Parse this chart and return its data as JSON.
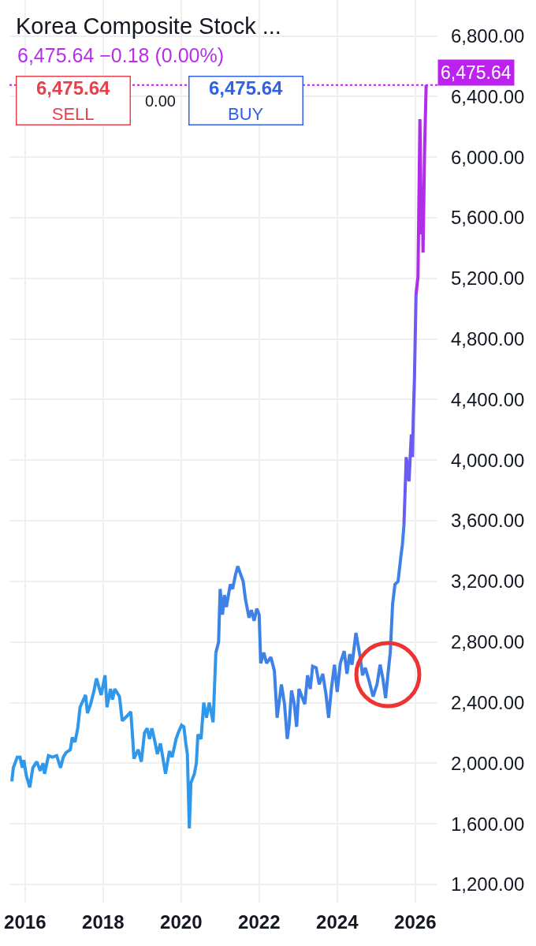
{
  "chart_data": {
    "type": "line",
    "title": "Korea Composite Stock ...",
    "subtitle": "6,475.64 −0.18 (0.00%)",
    "annotations": [
      "6,475.64\nSELL",
      "0.00",
      "6,475.64\nBUY"
    ],
    "xlim": [
      2015.6,
      2026.57
    ],
    "xticks": [
      2016,
      2018,
      2020,
      2022,
      2024,
      2026
    ],
    "ylim": [
      1080,
      7037
    ],
    "yticks": [
      {
        "value": 1200,
        "label": "1,200.00"
      },
      {
        "value": 1600,
        "label": "1,600.00"
      },
      {
        "value": 2000,
        "label": "2,000.00"
      },
      {
        "value": 2400,
        "label": "2,400.00"
      },
      {
        "value": 2800,
        "label": "2,800.00"
      },
      {
        "value": 3200,
        "label": "3,200.00"
      },
      {
        "value": 3600,
        "label": "3,600.00"
      },
      {
        "value": 4000,
        "label": "4,000.00"
      },
      {
        "value": 4400,
        "label": "4,400.00"
      },
      {
        "value": 4800,
        "label": "4,800.00"
      },
      {
        "value": 5200,
        "label": "5,200.00"
      },
      {
        "value": 5600,
        "label": "5,600.00"
      },
      {
        "value": 6000,
        "label": "6,000.00"
      },
      {
        "value": 6400,
        "label": "6,400.00"
      },
      {
        "value": 6800,
        "label": "6,800.00"
      }
    ],
    "grid": true,
    "line_style": "solid",
    "ref_lines": [
      {
        "axis": "y",
        "value": 6475.64,
        "label": "6,475.64",
        "color": "#bb22ee",
        "line_style": "dotted"
      }
    ],
    "series": [
      {
        "color": "#2f98ea",
        "x": [
          2015.66,
          2015.7,
          2015.8,
          2015.87,
          2015.93,
          2015.97,
          2016.03,
          2016.12,
          2016.2,
          2016.3,
          2016.39,
          2016.46,
          2016.5,
          2016.6,
          2016.7,
          2016.81,
          2016.91,
          2016.98,
          2017.05,
          2017.16,
          2017.21,
          2017.28,
          2017.35,
          2017.41,
          2017.55,
          2017.6,
          2017.68,
          2017.76,
          2017.83,
          2017.95,
          2018.05,
          2018.1,
          2018.19,
          2018.24,
          2018.3,
          2018.42,
          2018.49,
          2018.61,
          2018.71,
          2018.76,
          2018.79,
          2018.9,
          2018.98,
          2019.06,
          2019.13,
          2019.19,
          2019.25,
          2019.33,
          2019.39,
          2019.47,
          2019.6,
          2019.7,
          2019.77,
          2019.87,
          2019.94,
          2020.01,
          2020.07,
          2020.12,
          2020.16,
          2020.21,
          2020.25,
          2020.34,
          2020.39,
          2020.43,
          2020.51,
          2020.58,
          2020.65,
          2020.72,
          2020.82,
          2020.89
        ],
        "values": [
          1880,
          1970,
          2040,
          2040,
          1970,
          2020,
          1920,
          1840,
          1970,
          2010,
          1950,
          2000,
          1930,
          2050,
          2040,
          2050,
          1970,
          2040,
          2070,
          2090,
          2170,
          2140,
          2230,
          2370,
          2450,
          2330,
          2390,
          2470,
          2560,
          2450,
          2580,
          2370,
          2490,
          2420,
          2490,
          2440,
          2280,
          2310,
          2340,
          2160,
          2030,
          2090,
          2010,
          2200,
          2230,
          2160,
          2230,
          2140,
          2060,
          2130,
          1930,
          2080,
          2040,
          2160,
          2210,
          2250,
          2240,
          2130,
          2060,
          1570,
          1870,
          1930,
          2000,
          2190,
          2160,
          2400,
          2300,
          2400,
          2270,
          2730
        ]
      },
      {
        "color": "#3f82e7",
        "x": [
          2020.89,
          2020.96,
          2021.0,
          2021.06,
          2021.11,
          2021.16,
          2021.26,
          2021.32,
          2021.39,
          2021.45,
          2021.52,
          2021.59,
          2021.65,
          2021.74,
          2021.8,
          2021.87,
          2021.94,
          2022.0,
          2022.04,
          2022.12,
          2022.19,
          2022.3,
          2022.39,
          2022.46,
          2022.57,
          2022.65,
          2022.72,
          2022.77,
          2022.83,
          2022.9,
          2022.96,
          2023.02,
          2023.11,
          2023.17,
          2023.24,
          2023.31,
          2023.37,
          2023.46,
          2023.54,
          2023.63,
          2023.71,
          2023.78,
          2023.85,
          2023.93,
          2024.0,
          2024.08,
          2024.18,
          2024.25,
          2024.32,
          2024.38,
          2024.48,
          2024.59,
          2024.65,
          2024.72,
          2024.82,
          2024.92,
          2025.02,
          2025.1,
          2025.17,
          2025.24,
          2025.31,
          2025.36,
          2025.42,
          2025.48,
          2025.56,
          2025.63,
          2025.67,
          2025.71
        ],
        "values": [
          2730,
          2800,
          3150,
          2980,
          3110,
          3030,
          3180,
          3150,
          3240,
          3300,
          3250,
          3200,
          3080,
          2960,
          3010,
          2940,
          3020,
          2980,
          2660,
          2730,
          2660,
          2700,
          2610,
          2300,
          2520,
          2390,
          2160,
          2260,
          2480,
          2390,
          2240,
          2490,
          2430,
          2390,
          2580,
          2490,
          2640,
          2630,
          2520,
          2590,
          2460,
          2300,
          2490,
          2650,
          2470,
          2660,
          2740,
          2590,
          2720,
          2650,
          2860,
          2700,
          2580,
          2630,
          2540,
          2440,
          2520,
          2650,
          2560,
          2430,
          2610,
          2730,
          3050,
          3180,
          3200,
          3360,
          3440,
          3570
        ]
      },
      {
        "color": "#6a5cf0",
        "x": [
          2025.71,
          2025.77,
          2025.84,
          2025.9,
          2025.93,
          2025.95,
          2025.98,
          2026.02
        ],
        "values": [
          3570,
          4020,
          3860,
          4170,
          4020,
          4280,
          4540,
          5090
        ]
      },
      {
        "color": "#b02eea",
        "x": [
          2026.02,
          2026.07,
          2026.12,
          2026.16,
          2026.18,
          2026.2,
          2026.24,
          2026.28
        ],
        "values": [
          5090,
          5210,
          6250,
          5490,
          5790,
          5370,
          6050,
          6475.64
        ]
      }
    ]
  }
}
